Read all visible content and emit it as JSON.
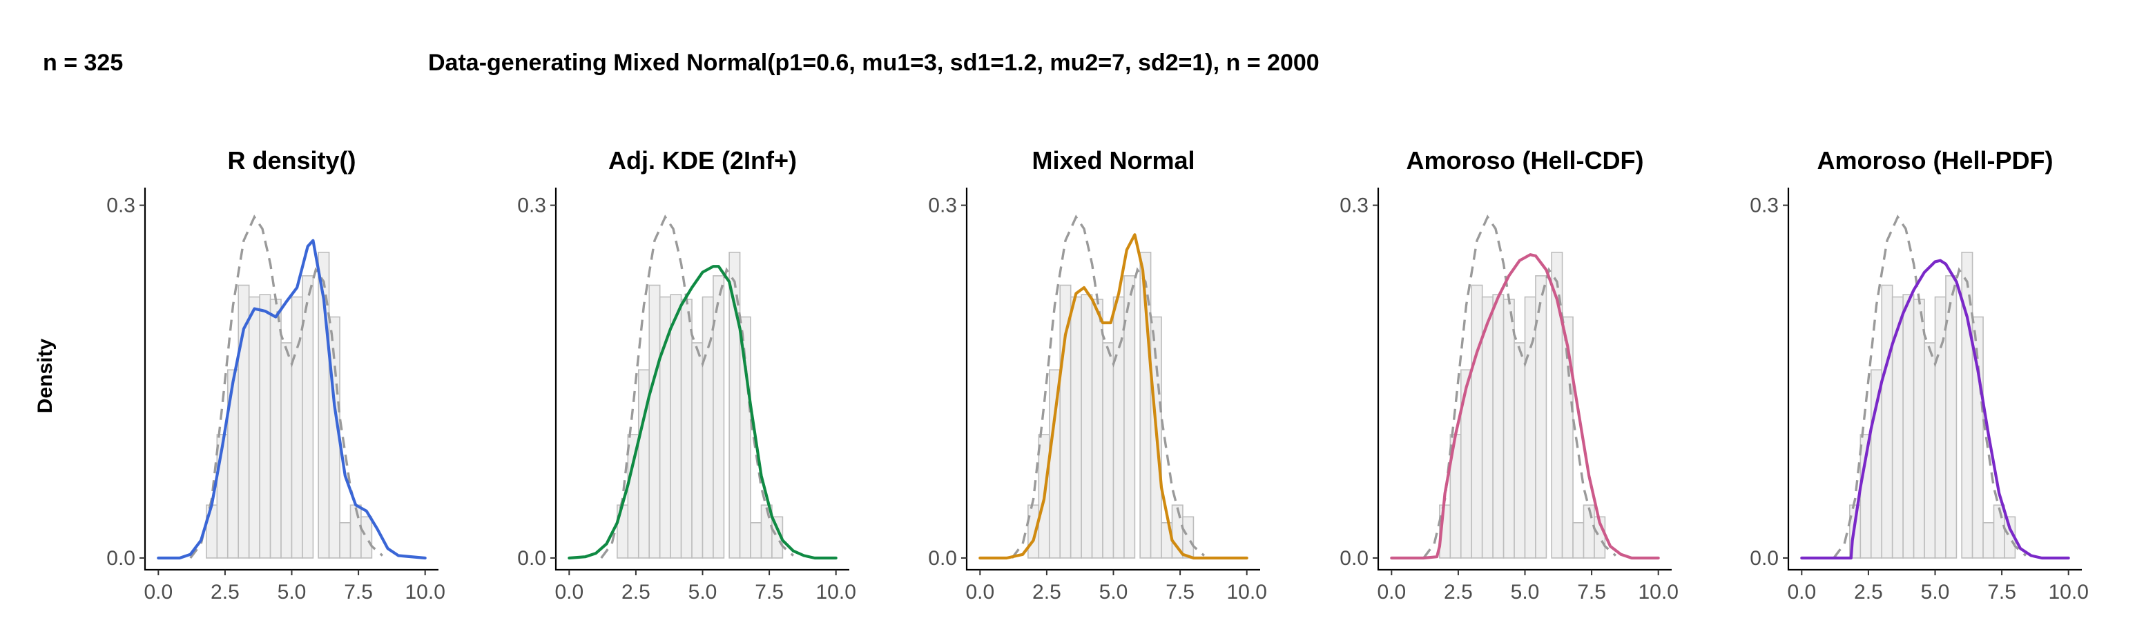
{
  "header": {
    "left": "n = 325",
    "main": "Data-generating Mixed Normal(p1=0.6, mu1=3, sd1=1.2, mu2=7, sd2=1), n = 2000"
  },
  "y_axis_label": "Density",
  "chart_data": [
    {
      "type": "line",
      "title": "R density()",
      "color": "#3a66d6",
      "xlim": [
        -0.5,
        10.5
      ],
      "ylim": [
        -0.01,
        0.315
      ],
      "x_ticks": [
        "0.0",
        "2.5",
        "5.0",
        "7.5",
        "10.0"
      ],
      "x_tick_values": [
        0,
        2.5,
        5,
        7.5,
        10
      ],
      "y_ticks": [
        "0.0",
        "0.3"
      ],
      "y_tick_values": [
        0,
        0.3
      ],
      "histogram": {
        "bin_starts": [
          1.8,
          2.2,
          2.6,
          3.0,
          3.4,
          3.8,
          4.2,
          4.6,
          5.0,
          5.4,
          6.0,
          6.4,
          6.8,
          7.2,
          7.6
        ],
        "bin_width": 0.4,
        "heights": [
          0.045,
          0.105,
          0.16,
          0.232,
          0.222,
          0.224,
          0.22,
          0.183,
          0.222,
          0.24,
          0.26,
          0.205,
          0.03,
          0.045,
          0.035
        ]
      },
      "truth_curve": {
        "x": [
          1.2,
          1.6,
          2.0,
          2.4,
          2.8,
          3.2,
          3.6,
          3.9,
          4.2,
          4.6,
          5.0,
          5.3,
          5.6,
          5.9,
          6.2,
          6.5,
          6.8,
          7.2,
          7.6,
          8.0,
          8.4
        ],
        "y": [
          0.0,
          0.012,
          0.05,
          0.13,
          0.215,
          0.27,
          0.29,
          0.28,
          0.25,
          0.19,
          0.165,
          0.185,
          0.22,
          0.245,
          0.235,
          0.19,
          0.12,
          0.06,
          0.025,
          0.01,
          0.002
        ]
      },
      "estimate": {
        "x": [
          0.0,
          0.8,
          1.2,
          1.6,
          2.0,
          2.4,
          2.8,
          3.2,
          3.6,
          4.0,
          4.4,
          4.8,
          5.2,
          5.6,
          5.8,
          6.2,
          6.6,
          7.0,
          7.4,
          7.8,
          8.2,
          8.6,
          9.0,
          10.0
        ],
        "y": [
          0.0,
          0.0,
          0.003,
          0.015,
          0.045,
          0.095,
          0.15,
          0.195,
          0.212,
          0.21,
          0.205,
          0.218,
          0.23,
          0.265,
          0.27,
          0.22,
          0.13,
          0.07,
          0.045,
          0.04,
          0.025,
          0.008,
          0.002,
          0.0
        ]
      }
    },
    {
      "type": "line",
      "title": "Adj. KDE (2Inf+)",
      "color": "#0f8a43",
      "xlim": [
        -0.5,
        10.5
      ],
      "ylim": [
        -0.01,
        0.315
      ],
      "x_ticks": [
        "0.0",
        "2.5",
        "5.0",
        "7.5",
        "10.0"
      ],
      "x_tick_values": [
        0,
        2.5,
        5,
        7.5,
        10
      ],
      "y_ticks": [
        "0.0",
        "0.3"
      ],
      "y_tick_values": [
        0,
        0.3
      ],
      "histogram": {
        "bin_starts": [
          1.8,
          2.2,
          2.6,
          3.0,
          3.4,
          3.8,
          4.2,
          4.6,
          5.0,
          5.4,
          6.0,
          6.4,
          6.8,
          7.2,
          7.6
        ],
        "bin_width": 0.4,
        "heights": [
          0.045,
          0.105,
          0.16,
          0.232,
          0.222,
          0.224,
          0.22,
          0.183,
          0.222,
          0.24,
          0.26,
          0.205,
          0.03,
          0.045,
          0.035
        ]
      },
      "truth_curve": {
        "x": [
          1.2,
          1.6,
          2.0,
          2.4,
          2.8,
          3.2,
          3.6,
          3.9,
          4.2,
          4.6,
          5.0,
          5.3,
          5.6,
          5.9,
          6.2,
          6.5,
          6.8,
          7.2,
          7.6,
          8.0,
          8.4
        ],
        "y": [
          0.0,
          0.012,
          0.05,
          0.13,
          0.215,
          0.27,
          0.29,
          0.28,
          0.25,
          0.19,
          0.165,
          0.185,
          0.22,
          0.245,
          0.235,
          0.19,
          0.12,
          0.06,
          0.025,
          0.01,
          0.002
        ]
      },
      "estimate": {
        "x": [
          0.0,
          0.6,
          1.0,
          1.4,
          1.8,
          2.2,
          2.6,
          3.0,
          3.4,
          3.8,
          4.2,
          4.6,
          5.0,
          5.4,
          5.6,
          6.0,
          6.4,
          6.8,
          7.2,
          7.6,
          8.0,
          8.4,
          8.8,
          9.2,
          10.0
        ],
        "y": [
          0.0,
          0.001,
          0.004,
          0.012,
          0.03,
          0.062,
          0.1,
          0.138,
          0.17,
          0.195,
          0.215,
          0.23,
          0.243,
          0.248,
          0.248,
          0.235,
          0.195,
          0.13,
          0.07,
          0.035,
          0.015,
          0.006,
          0.002,
          0.0,
          0.0
        ]
      }
    },
    {
      "type": "line",
      "title": "Mixed Normal",
      "color": "#d08a10",
      "xlim": [
        -0.5,
        10.5
      ],
      "ylim": [
        -0.01,
        0.315
      ],
      "x_ticks": [
        "0.0",
        "2.5",
        "5.0",
        "7.5",
        "10.0"
      ],
      "x_tick_values": [
        0,
        2.5,
        5,
        7.5,
        10
      ],
      "y_ticks": [
        "0.0",
        "0.3"
      ],
      "y_tick_values": [
        0,
        0.3
      ],
      "histogram": {
        "bin_starts": [
          1.8,
          2.2,
          2.6,
          3.0,
          3.4,
          3.8,
          4.2,
          4.6,
          5.0,
          5.4,
          6.0,
          6.4,
          6.8,
          7.2,
          7.6
        ],
        "bin_width": 0.4,
        "heights": [
          0.045,
          0.105,
          0.16,
          0.232,
          0.222,
          0.224,
          0.22,
          0.183,
          0.222,
          0.24,
          0.26,
          0.205,
          0.03,
          0.045,
          0.035
        ]
      },
      "truth_curve": {
        "x": [
          1.2,
          1.6,
          2.0,
          2.4,
          2.8,
          3.2,
          3.6,
          3.9,
          4.2,
          4.6,
          5.0,
          5.3,
          5.6,
          5.9,
          6.2,
          6.5,
          6.8,
          7.2,
          7.6,
          8.0,
          8.4
        ],
        "y": [
          0.0,
          0.012,
          0.05,
          0.13,
          0.215,
          0.27,
          0.29,
          0.28,
          0.25,
          0.19,
          0.165,
          0.185,
          0.22,
          0.245,
          0.235,
          0.19,
          0.12,
          0.06,
          0.025,
          0.01,
          0.002
        ]
      },
      "estimate": {
        "x": [
          0.0,
          1.0,
          1.6,
          2.0,
          2.4,
          2.8,
          3.2,
          3.6,
          3.9,
          4.2,
          4.6,
          4.9,
          5.2,
          5.5,
          5.8,
          6.1,
          6.4,
          6.8,
          7.2,
          7.6,
          8.0,
          8.6,
          10.0
        ],
        "y": [
          0.0,
          0.0,
          0.003,
          0.015,
          0.05,
          0.12,
          0.19,
          0.225,
          0.23,
          0.22,
          0.2,
          0.2,
          0.225,
          0.262,
          0.275,
          0.245,
          0.16,
          0.06,
          0.015,
          0.003,
          0.0,
          0.0,
          0.0
        ]
      }
    },
    {
      "type": "line",
      "title": "Amoroso (Hell-CDF)",
      "color": "#cc5a8a",
      "xlim": [
        -0.5,
        10.5
      ],
      "ylim": [
        -0.01,
        0.315
      ],
      "x_ticks": [
        "0.0",
        "2.5",
        "5.0",
        "7.5",
        "10.0"
      ],
      "x_tick_values": [
        0,
        2.5,
        5,
        7.5,
        10
      ],
      "y_ticks": [
        "0.0",
        "0.3"
      ],
      "y_tick_values": [
        0,
        0.3
      ],
      "histogram": {
        "bin_starts": [
          1.8,
          2.2,
          2.6,
          3.0,
          3.4,
          3.8,
          4.2,
          4.6,
          5.0,
          5.4,
          6.0,
          6.4,
          6.8,
          7.2,
          7.6
        ],
        "bin_width": 0.4,
        "heights": [
          0.045,
          0.105,
          0.16,
          0.232,
          0.222,
          0.224,
          0.22,
          0.183,
          0.222,
          0.24,
          0.26,
          0.205,
          0.03,
          0.045,
          0.035
        ]
      },
      "truth_curve": {
        "x": [
          1.2,
          1.6,
          2.0,
          2.4,
          2.8,
          3.2,
          3.6,
          3.9,
          4.2,
          4.6,
          5.0,
          5.3,
          5.6,
          5.9,
          6.2,
          6.5,
          6.8,
          7.2,
          7.6,
          8.0,
          8.4
        ],
        "y": [
          0.0,
          0.012,
          0.05,
          0.13,
          0.215,
          0.27,
          0.29,
          0.28,
          0.25,
          0.19,
          0.165,
          0.185,
          0.22,
          0.245,
          0.235,
          0.19,
          0.12,
          0.06,
          0.025,
          0.01,
          0.002
        ]
      },
      "estimate": {
        "x": [
          0.0,
          1.2,
          1.7,
          1.8,
          2.0,
          2.4,
          2.8,
          3.2,
          3.6,
          4.0,
          4.4,
          4.8,
          5.2,
          5.4,
          5.8,
          6.2,
          6.6,
          7.0,
          7.4,
          7.8,
          8.2,
          8.6,
          9.0,
          10.0
        ],
        "y": [
          0.0,
          0.0,
          0.001,
          0.01,
          0.055,
          0.105,
          0.145,
          0.175,
          0.2,
          0.222,
          0.24,
          0.253,
          0.258,
          0.257,
          0.245,
          0.22,
          0.18,
          0.125,
          0.07,
          0.03,
          0.01,
          0.003,
          0.0,
          0.0
        ]
      }
    },
    {
      "type": "line",
      "title": "Amoroso (Hell-PDF)",
      "color": "#7a28c8",
      "xlim": [
        -0.5,
        10.5
      ],
      "ylim": [
        -0.01,
        0.315
      ],
      "x_ticks": [
        "0.0",
        "2.5",
        "5.0",
        "7.5",
        "10.0"
      ],
      "x_tick_values": [
        0,
        2.5,
        5,
        7.5,
        10
      ],
      "y_ticks": [
        "0.0",
        "0.3"
      ],
      "y_tick_values": [
        0,
        0.3
      ],
      "histogram": {
        "bin_starts": [
          1.8,
          2.2,
          2.6,
          3.0,
          3.4,
          3.8,
          4.2,
          4.6,
          5.0,
          5.4,
          6.0,
          6.4,
          6.8,
          7.2,
          7.6
        ],
        "bin_width": 0.4,
        "heights": [
          0.045,
          0.105,
          0.16,
          0.232,
          0.222,
          0.224,
          0.22,
          0.183,
          0.222,
          0.24,
          0.26,
          0.205,
          0.03,
          0.045,
          0.035
        ]
      },
      "truth_curve": {
        "x": [
          1.2,
          1.6,
          2.0,
          2.4,
          2.8,
          3.2,
          3.6,
          3.9,
          4.2,
          4.6,
          5.0,
          5.3,
          5.6,
          5.9,
          6.2,
          6.5,
          6.8,
          7.2,
          7.6,
          8.0,
          8.4
        ],
        "y": [
          0.0,
          0.012,
          0.05,
          0.13,
          0.215,
          0.27,
          0.29,
          0.28,
          0.25,
          0.19,
          0.165,
          0.185,
          0.22,
          0.245,
          0.235,
          0.19,
          0.12,
          0.06,
          0.025,
          0.01,
          0.002
        ]
      },
      "estimate": {
        "x": [
          0.0,
          1.4,
          1.85,
          1.9,
          2.2,
          2.6,
          3.0,
          3.4,
          3.8,
          4.2,
          4.6,
          5.0,
          5.2,
          5.4,
          5.8,
          6.2,
          6.6,
          7.0,
          7.4,
          7.8,
          8.2,
          8.6,
          9.0,
          10.0
        ],
        "y": [
          0.0,
          0.0,
          0.0,
          0.015,
          0.06,
          0.11,
          0.15,
          0.182,
          0.208,
          0.228,
          0.243,
          0.252,
          0.253,
          0.25,
          0.235,
          0.205,
          0.16,
          0.105,
          0.055,
          0.025,
          0.008,
          0.002,
          0.0,
          0.0
        ]
      }
    }
  ]
}
